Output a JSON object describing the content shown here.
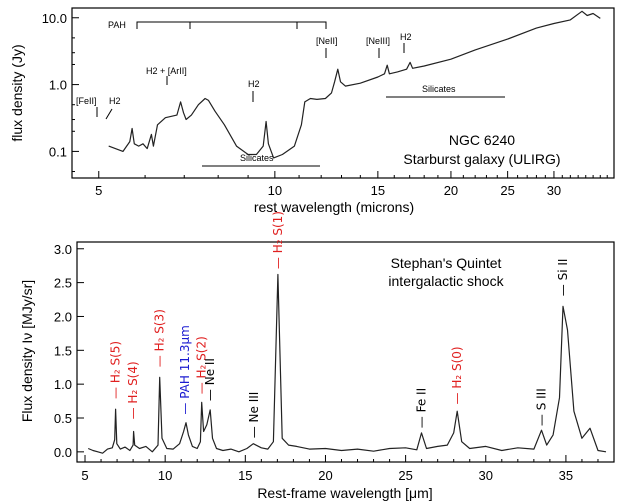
{
  "chart_data": [
    {
      "type": "line",
      "title": "",
      "xlabel": "rest wavelength (microns)",
      "ylabel": "flux density (Jy)",
      "x_scale": "log",
      "y_scale": "log",
      "xlim": [
        4.5,
        38
      ],
      "ylim": [
        0.04,
        14
      ],
      "x_ticks": [
        5,
        10,
        15,
        20,
        25,
        30
      ],
      "y_ticks": [
        "10.0",
        "1.0",
        "0.1"
      ],
      "annotation": [
        "NGC 6240",
        "Starburst galaxy (ULIRG)"
      ],
      "line_labels": [
        "PAH",
        "[FeII]",
        "H2",
        "H2 + [ArII]",
        "H2",
        "[NeII]",
        "[NeIII]",
        "H2"
      ],
      "range_labels": [
        "Silicates",
        "Silicates"
      ],
      "series": [
        {
          "x": [
            5.2,
            5.5,
            5.65,
            5.7,
            5.75,
            5.85,
            5.95,
            6.05,
            6.15,
            6.2,
            6.3,
            6.5,
            6.8,
            6.9,
            6.98,
            7.05,
            7.2,
            7.4,
            7.6,
            7.7,
            7.9,
            8.2,
            8.6,
            9.0,
            9.3,
            9.55,
            9.66,
            9.75,
            9.95,
            10.3,
            10.8,
            11.1,
            11.25,
            11.5,
            11.8,
            12.2,
            12.5,
            12.65,
            12.81,
            12.95,
            13.2,
            14,
            15,
            15.4,
            15.56,
            15.7,
            16.2,
            16.8,
            17.03,
            17.2,
            18,
            20,
            22,
            25,
            28,
            30,
            32,
            33.5,
            34.2,
            35,
            36
          ],
          "values": [
            0.12,
            0.1,
            0.14,
            0.22,
            0.13,
            0.12,
            0.13,
            0.11,
            0.18,
            0.12,
            0.25,
            0.32,
            0.35,
            0.55,
            0.38,
            0.3,
            0.35,
            0.5,
            0.62,
            0.58,
            0.4,
            0.25,
            0.12,
            0.09,
            0.09,
            0.12,
            0.28,
            0.13,
            0.08,
            0.09,
            0.12,
            0.25,
            0.55,
            0.62,
            0.6,
            0.62,
            0.75,
            1.1,
            1.7,
            1.1,
            0.95,
            1.05,
            1.3,
            1.45,
            1.95,
            1.45,
            1.55,
            1.7,
            2.15,
            1.75,
            1.9,
            2.4,
            3.3,
            4.8,
            7.0,
            8.2,
            9.3,
            12.5,
            10.8,
            11.6,
            9.8
          ]
        }
      ]
    },
    {
      "type": "line",
      "title": "",
      "xlabel": "Rest-frame wavelength [μm]",
      "ylabel": "Flux density Iν [MJy/sr]",
      "xlim": [
        4.5,
        38
      ],
      "ylim": [
        -0.15,
        3.1
      ],
      "x_ticks": [
        5,
        10,
        15,
        20,
        25,
        30,
        35
      ],
      "y_ticks": [
        "0.0",
        "0.5",
        "1.0",
        "1.5",
        "2.0",
        "2.5",
        "3.0"
      ],
      "annotation": [
        "Stephan's Quintet",
        "intergalactic shock"
      ],
      "line_labels": [
        {
          "label": "H₂ S(5)",
          "color": "#e02020"
        },
        {
          "label": "H₂ S(4)",
          "color": "#e02020"
        },
        {
          "label": "H₂ S(3)",
          "color": "#e02020"
        },
        {
          "label": "PAH 11.3μm",
          "color": "#1a1ad0"
        },
        {
          "label": "H₂ S(2)",
          "color": "#e02020"
        },
        {
          "label": "Ne II",
          "color": "#000000"
        },
        {
          "label": "Ne III",
          "color": "#000000"
        },
        {
          "label": "H₂ S(1)",
          "color": "#e02020"
        },
        {
          "label": "Fe II",
          "color": "#000000"
        },
        {
          "label": "H₂ S(0)",
          "color": "#e02020"
        },
        {
          "label": "S III",
          "color": "#000000"
        },
        {
          "label": "Si II",
          "color": "#000000"
        }
      ],
      "series": [
        {
          "x": [
            5.2,
            5.5,
            5.8,
            6.1,
            6.4,
            6.7,
            6.85,
            6.91,
            6.98,
            7.2,
            7.5,
            7.8,
            8.0,
            8.03,
            8.1,
            8.4,
            8.8,
            9.2,
            9.55,
            9.66,
            9.8,
            10.1,
            10.5,
            10.9,
            11.15,
            11.3,
            11.45,
            11.7,
            12.0,
            12.2,
            12.28,
            12.4,
            12.6,
            12.81,
            12.95,
            13.2,
            13.6,
            14.1,
            14.6,
            15.1,
            15.5,
            16.0,
            16.4,
            16.75,
            17.03,
            17.3,
            17.7,
            18.2,
            19,
            20,
            21,
            22,
            23,
            24,
            25,
            25.7,
            25.99,
            26.3,
            27,
            27.6,
            28.0,
            28.22,
            28.5,
            29,
            30,
            31,
            32,
            33,
            33.48,
            33.8,
            34.2,
            34.6,
            34.82,
            35.1,
            35.5,
            36,
            36.5,
            37,
            37.5
          ],
          "values": [
            0.05,
            0.02,
            0.0,
            -0.02,
            0.04,
            0.06,
            0.18,
            0.63,
            0.12,
            0.04,
            0.07,
            0.02,
            0.1,
            0.3,
            0.1,
            0.05,
            0.08,
            0.0,
            0.1,
            1.1,
            0.2,
            0.05,
            0.04,
            0.12,
            0.3,
            0.43,
            0.25,
            0.08,
            0.05,
            0.15,
            0.73,
            0.3,
            0.4,
            0.62,
            0.2,
            0.05,
            0.02,
            0.04,
            0.0,
            0.05,
            0.12,
            0.06,
            0.04,
            0.15,
            2.62,
            0.2,
            0.1,
            0.08,
            0.04,
            0.05,
            0.02,
            0.04,
            0.01,
            0.05,
            0.06,
            0.03,
            0.28,
            0.05,
            0.08,
            0.1,
            0.28,
            0.6,
            0.15,
            0.05,
            0.08,
            0.02,
            0.06,
            0.04,
            0.32,
            0.1,
            0.25,
            0.8,
            2.15,
            1.8,
            0.6,
            0.2,
            0.35,
            0.02,
            0.0
          ]
        }
      ]
    }
  ]
}
